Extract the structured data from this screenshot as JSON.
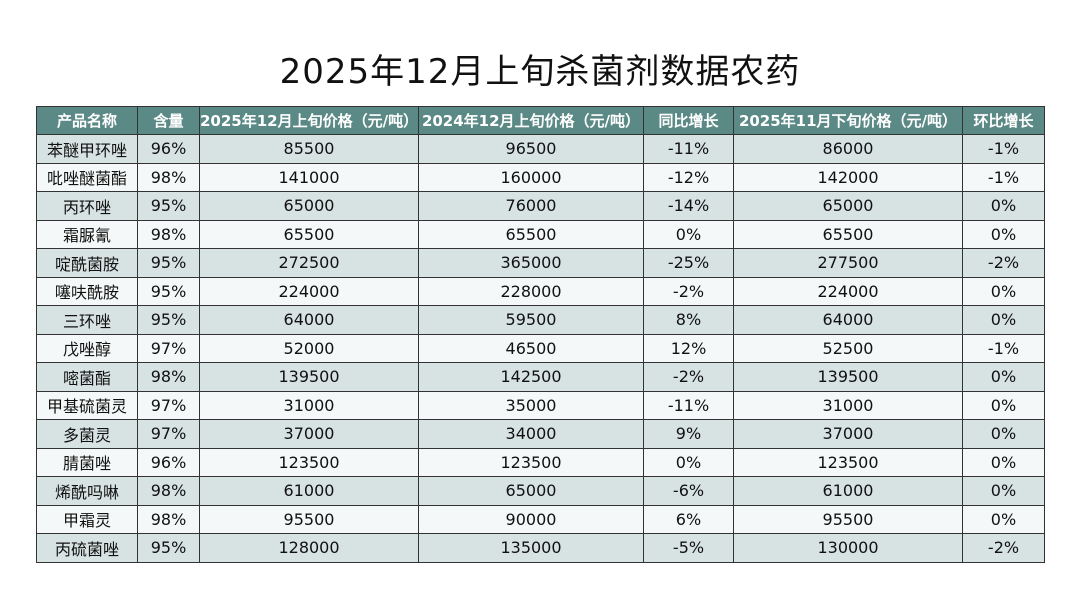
{
  "header": {
    "title": "2025年12月上旬杀菌剂数据农药"
  },
  "table": {
    "columns": [
      "产品名称",
      "含量",
      "2025年12月上旬价格（元/吨）",
      "2024年12月上旬价格（元/吨）",
      "同比增长",
      "2025年11月下旬价格（元/吨）",
      "环比增长"
    ],
    "rows": [
      [
        "苯醚甲环唑",
        "96%",
        "85500",
        "96500",
        "-11%",
        "86000",
        "-1%"
      ],
      [
        "吡唑醚菌酯",
        "98%",
        "141000",
        "160000",
        "-12%",
        "142000",
        "-1%"
      ],
      [
        "丙环唑",
        "95%",
        "65000",
        "76000",
        "-14%",
        "65000",
        "0%"
      ],
      [
        "霜脲氰",
        "98%",
        "65500",
        "65500",
        "0%",
        "65500",
        "0%"
      ],
      [
        "啶酰菌胺",
        "95%",
        "272500",
        "365000",
        "-25%",
        "277500",
        "-2%"
      ],
      [
        "噻呋酰胺",
        "95%",
        "224000",
        "228000",
        "-2%",
        "224000",
        "0%"
      ],
      [
        "三环唑",
        "95%",
        "64000",
        "59500",
        "8%",
        "64000",
        "0%"
      ],
      [
        "戊唑醇",
        "97%",
        "52000",
        "46500",
        "12%",
        "52500",
        "-1%"
      ],
      [
        "嘧菌酯",
        "98%",
        "139500",
        "142500",
        "-2%",
        "139500",
        "0%"
      ],
      [
        "甲基硫菌灵",
        "97%",
        "31000",
        "35000",
        "-11%",
        "31000",
        "0%"
      ],
      [
        "多菌灵",
        "97%",
        "37000",
        "34000",
        "9%",
        "37000",
        "0%"
      ],
      [
        "腈菌唑",
        "96%",
        "123500",
        "123500",
        "0%",
        "123500",
        "0%"
      ],
      [
        "烯酰吗啉",
        "98%",
        "61000",
        "65000",
        "-6%",
        "61000",
        "0%"
      ],
      [
        "甲霜灵",
        "98%",
        "95500",
        "90000",
        "6%",
        "95500",
        "0%"
      ],
      [
        "丙硫菌唑",
        "95%",
        "128000",
        "135000",
        "-5%",
        "130000",
        "-2%"
      ]
    ]
  }
}
